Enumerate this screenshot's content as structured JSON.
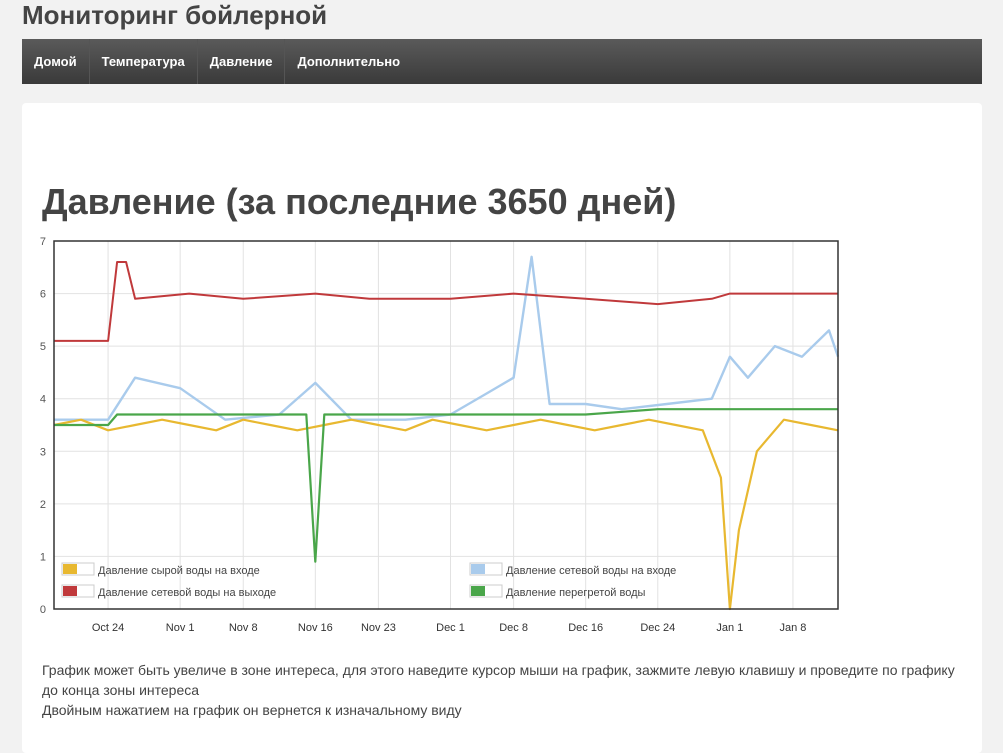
{
  "site": {
    "title": "Мониторинг бойлерной"
  },
  "nav": {
    "items": [
      {
        "label": "Домой"
      },
      {
        "label": "Температура"
      },
      {
        "label": "Давление"
      },
      {
        "label": "Дополнительно"
      }
    ]
  },
  "main": {
    "heading": "Давление (за последние 3650 дней)",
    "description_1": "График может быть увеличе в зоне интереса, для этого наведите курсор мыши на график, зажмите левую клавишу и проведите по графику до конца зоны интереса",
    "description_2": "Двойным нажатием на график он вернется к изначальному виду"
  },
  "chart_data": {
    "type": "line",
    "title": "",
    "xlabel": "",
    "ylabel": "",
    "ylim": [
      0,
      7
    ],
    "xlim": [
      "2013-10-18",
      "2014-01-13"
    ],
    "yticks": [
      0,
      1,
      2,
      3,
      4,
      5,
      6,
      7
    ],
    "xticks": [
      {
        "date": "2013-10-24",
        "label": "Oct 24"
      },
      {
        "date": "2013-11-01",
        "label": "Nov 1"
      },
      {
        "date": "2013-11-08",
        "label": "Nov 8"
      },
      {
        "date": "2013-11-16",
        "label": "Nov 16"
      },
      {
        "date": "2013-11-23",
        "label": "Nov 23"
      },
      {
        "date": "2013-12-01",
        "label": "Dec 1"
      },
      {
        "date": "2013-12-08",
        "label": "Dec 8"
      },
      {
        "date": "2013-12-16",
        "label": "Dec 16"
      },
      {
        "date": "2013-12-24",
        "label": "Dec 24"
      },
      {
        "date": "2014-01-01",
        "label": "Jan 1"
      },
      {
        "date": "2014-01-08",
        "label": "Jan 8"
      }
    ],
    "grid": true,
    "legend_position": "bottom",
    "series": [
      {
        "name": "Давление сырой воды на входе",
        "color": "#e8b830",
        "x": [
          "2013-10-18",
          "2013-10-21",
          "2013-10-24",
          "2013-10-27",
          "2013-10-30",
          "2013-11-02",
          "2013-11-05",
          "2013-11-08",
          "2013-11-11",
          "2013-11-14",
          "2013-11-17",
          "2013-11-20",
          "2013-11-23",
          "2013-11-26",
          "2013-11-29",
          "2013-12-02",
          "2013-12-05",
          "2013-12-08",
          "2013-12-11",
          "2013-12-14",
          "2013-12-17",
          "2013-12-20",
          "2013-12-23",
          "2013-12-26",
          "2013-12-29",
          "2013-12-31",
          "2014-01-01",
          "2014-01-02",
          "2014-01-04",
          "2014-01-07",
          "2014-01-10",
          "2014-01-13"
        ],
        "y": [
          3.5,
          3.6,
          3.4,
          3.5,
          3.6,
          3.5,
          3.4,
          3.6,
          3.5,
          3.4,
          3.5,
          3.6,
          3.5,
          3.4,
          3.6,
          3.5,
          3.4,
          3.5,
          3.6,
          3.5,
          3.4,
          3.5,
          3.6,
          3.5,
          3.4,
          2.5,
          0.0,
          1.5,
          3.0,
          3.6,
          3.5,
          3.4
        ]
      },
      {
        "name": "Давление сетевой воды на выходе",
        "color": "#c0393b",
        "x": [
          "2013-10-18",
          "2013-10-24",
          "2013-10-25",
          "2013-10-26",
          "2013-10-27",
          "2013-11-02",
          "2013-11-08",
          "2013-11-16",
          "2013-11-22",
          "2013-12-01",
          "2013-12-08",
          "2013-12-16",
          "2013-12-24",
          "2013-12-30",
          "2014-01-01",
          "2014-01-08",
          "2014-01-13"
        ],
        "y": [
          5.1,
          5.1,
          6.6,
          6.6,
          5.9,
          6.0,
          5.9,
          6.0,
          5.9,
          5.9,
          6.0,
          5.9,
          5.8,
          5.9,
          6.0,
          6.0,
          6.0
        ]
      },
      {
        "name": "Давление сетевой воды на входе",
        "color": "#a9cbec",
        "x": [
          "2013-10-18",
          "2013-10-24",
          "2013-10-27",
          "2013-11-01",
          "2013-11-06",
          "2013-11-12",
          "2013-11-16",
          "2013-11-20",
          "2013-11-26",
          "2013-12-01",
          "2013-12-05",
          "2013-12-08",
          "2013-12-10",
          "2013-12-12",
          "2013-12-16",
          "2013-12-20",
          "2013-12-25",
          "2013-12-30",
          "2014-01-01",
          "2014-01-03",
          "2014-01-06",
          "2014-01-09",
          "2014-01-12",
          "2014-01-13"
        ],
        "y": [
          3.6,
          3.6,
          4.4,
          4.2,
          3.6,
          3.7,
          4.3,
          3.6,
          3.6,
          3.7,
          4.1,
          4.4,
          6.7,
          3.9,
          3.9,
          3.8,
          3.9,
          4.0,
          4.8,
          4.4,
          5.0,
          4.8,
          5.3,
          4.8
        ]
      },
      {
        "name": "Давление перегретой воды",
        "color": "#4aa64a",
        "x": [
          "2013-10-18",
          "2013-10-24",
          "2013-10-25",
          "2013-11-01",
          "2013-11-08",
          "2013-11-15",
          "2013-11-16",
          "2013-11-17",
          "2013-11-24",
          "2013-12-01",
          "2013-12-08",
          "2013-12-16",
          "2013-12-24",
          "2014-01-01",
          "2014-01-08",
          "2014-01-13"
        ],
        "y": [
          3.5,
          3.5,
          3.7,
          3.7,
          3.7,
          3.7,
          0.9,
          3.7,
          3.7,
          3.7,
          3.7,
          3.7,
          3.8,
          3.8,
          3.8,
          3.8
        ]
      }
    ]
  }
}
